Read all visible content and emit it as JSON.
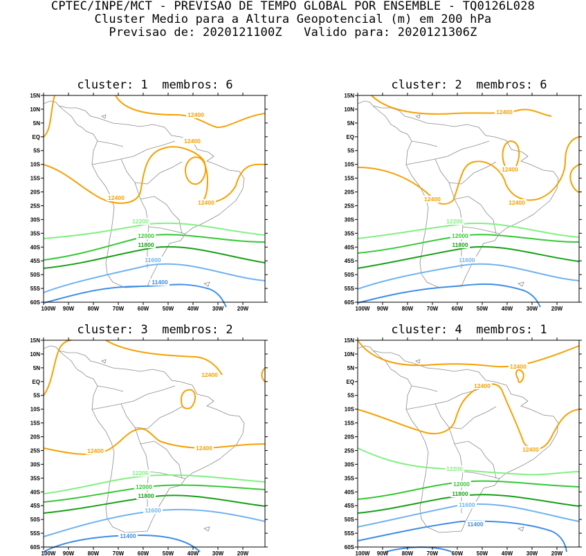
{
  "header": {
    "line1": "CPTEC/INPE/MCT - PREVISAO DE TEMPO GLOBAL POR ENSEMBLE - TQ0126L028",
    "line2": "Cluster Medio para a Altura Geopotencial (m) em 200 hPa",
    "line3": "Previsao de: 2020121100Z   Valido para: 2020121306Z"
  },
  "axes": {
    "lat_labels": [
      "15N",
      "10N",
      "5N",
      "EQ",
      "5S",
      "10S",
      "15S",
      "20S",
      "25S",
      "30S",
      "35S",
      "40S",
      "45S",
      "50S",
      "55S",
      "60S"
    ],
    "lon_labels": [
      "100W",
      "90W",
      "80W",
      "70W",
      "60W",
      "50W",
      "40W",
      "30W",
      "20W"
    ]
  },
  "contour_levels": {
    "12400": {
      "label": "12400",
      "color": "#f5a000"
    },
    "12200": {
      "label": "12200",
      "color": "#80f080"
    },
    "12000": {
      "label": "12000",
      "color": "#32c832"
    },
    "11800": {
      "label": "11800",
      "color": "#14a014"
    },
    "11600": {
      "label": "11600",
      "color": "#6fb2ee"
    },
    "11400": {
      "label": "11400",
      "color": "#3c8ce6"
    }
  },
  "panels": [
    {
      "title": "cluster: 1  membros: 6"
    },
    {
      "title": "cluster: 2  membros: 6"
    },
    {
      "title": "cluster: 3  membros: 2"
    },
    {
      "title": "cluster: 4  membros: 1"
    }
  ]
}
